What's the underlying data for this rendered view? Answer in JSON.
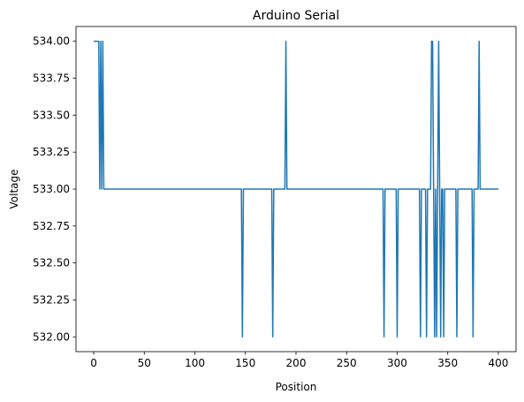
{
  "chart_data": {
    "type": "line",
    "title": "Arduino Serial",
    "xlabel": "Position",
    "ylabel": "Voltage",
    "xlim": [
      -17.5,
      417.5
    ],
    "ylim": [
      531.9,
      534.1
    ],
    "x_ticks": [
      0,
      50,
      100,
      150,
      200,
      250,
      300,
      350,
      400
    ],
    "x_tick_labels": [
      "0",
      "50",
      "100",
      "150",
      "200",
      "250",
      "300",
      "350",
      "400"
    ],
    "y_ticks": [
      532.0,
      532.25,
      532.5,
      532.75,
      533.0,
      533.25,
      533.5,
      533.75,
      534.0
    ],
    "y_tick_labels": [
      "532.00",
      "532.25",
      "532.50",
      "532.75",
      "533.00",
      "533.25",
      "533.50",
      "533.75",
      "534.00"
    ],
    "grid": false,
    "legend": "none",
    "series_color": "#1f77b4",
    "series": [
      {
        "x": [
          0,
          5,
          6,
          7,
          8,
          9,
          10,
          146,
          147,
          148,
          176,
          177,
          178,
          189,
          190,
          191,
          286,
          287,
          288,
          299,
          300,
          301,
          322,
          323,
          324,
          328,
          329,
          330,
          333,
          334,
          335,
          336,
          337,
          338,
          339,
          340,
          341,
          342,
          343,
          344,
          345,
          346,
          347,
          358,
          359,
          360,
          374,
          375,
          376,
          380,
          381,
          382,
          383,
          400
        ],
        "y": [
          534,
          534,
          533,
          534,
          533,
          534,
          533,
          533,
          532,
          533,
          533,
          532,
          533,
          533,
          534,
          533,
          533,
          532,
          533,
          533,
          532,
          533,
          533,
          532,
          533,
          533,
          532,
          533,
          533,
          534,
          534,
          533,
          532,
          533,
          532,
          533,
          534,
          533,
          532,
          533,
          533,
          532,
          533,
          533,
          532,
          533,
          533,
          532,
          533,
          533,
          534,
          533,
          533,
          533
        ]
      }
    ]
  }
}
